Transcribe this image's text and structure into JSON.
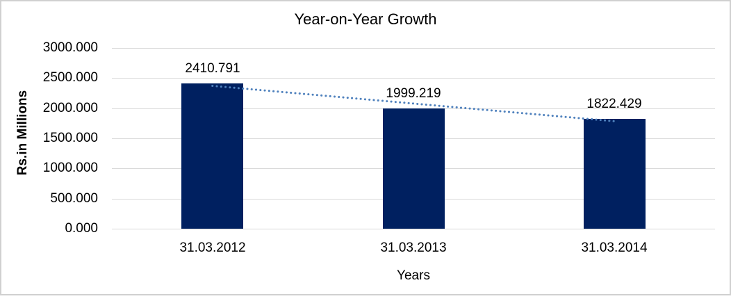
{
  "page": {
    "background_color": "#ffffff",
    "frame_border_color": "#d0d0d0"
  },
  "chart_data": {
    "type": "bar",
    "title": "Year-on-Year Growth",
    "categories": [
      "31.03.2012",
      "31.03.2013",
      "31.03.2014"
    ],
    "values": [
      2410.791,
      1999.219,
      1822.429
    ],
    "data_labels": [
      "2410.791",
      "1999.219",
      "1822.429"
    ],
    "xlabel": "Years",
    "ylabel": "Rs.in Millions",
    "ylim": [
      0,
      3000
    ],
    "ytick_step": 500,
    "ytick_labels": [
      "0.000",
      "500.000",
      "1000.000",
      "1500.000",
      "2000.000",
      "2500.000",
      "3000.000"
    ],
    "grid": true,
    "legend": "none",
    "bar_color": "#002060",
    "gridline_color": "#d9d9d9",
    "text_color": "#000000",
    "trendline": {
      "type": "linear",
      "style": "dotted",
      "color": "#4f81bd"
    }
  }
}
